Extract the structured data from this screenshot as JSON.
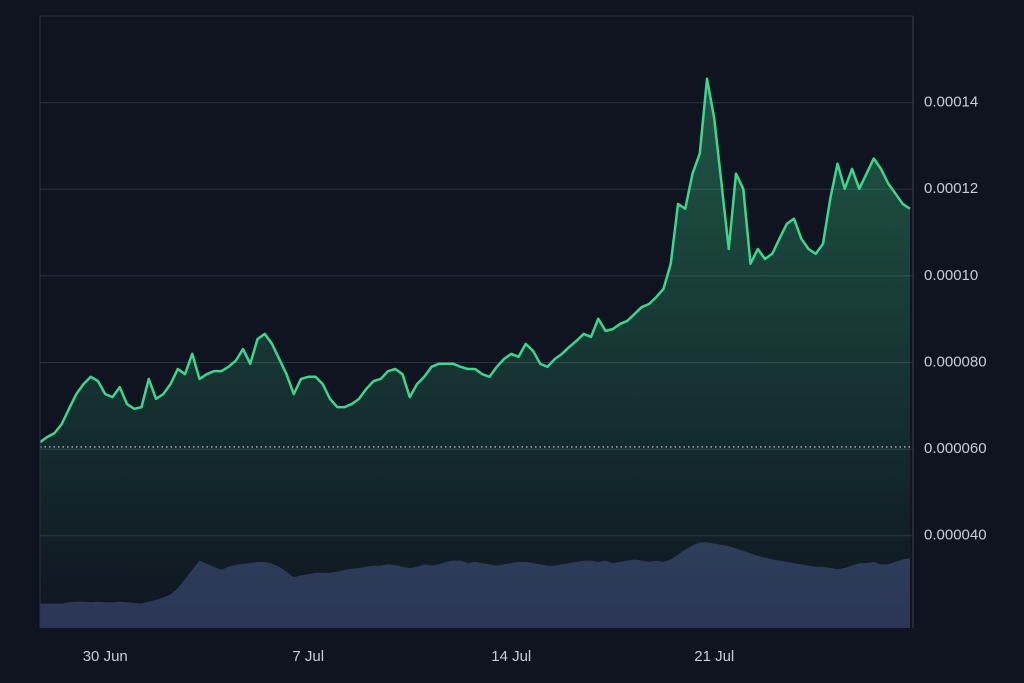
{
  "chart_data": {
    "type": "line",
    "background": "#0f1420",
    "grid": true,
    "grid_color": "#2b3242",
    "baseline": 6.05e-05,
    "ylim": [
      1.87e-05,
      0.00016
    ],
    "yticks": [
      {
        "value": 4e-05,
        "label": "0.000040"
      },
      {
        "value": 6e-05,
        "label": "0.000060"
      },
      {
        "value": 8e-05,
        "label": "0.000080"
      },
      {
        "value": 0.0001,
        "label": "0.00010"
      },
      0.00012,
      0.00014
    ],
    "y2lim": [
      0,
      100
    ],
    "categories": [
      null,
      null,
      null,
      null,
      null,
      null,
      null,
      null,
      null,
      "30 Jun",
      null,
      null,
      null,
      null,
      null,
      null,
      null,
      null,
      null,
      null,
      null,
      null,
      null,
      null,
      null,
      null,
      null,
      null,
      null,
      null,
      null,
      null,
      null,
      null,
      null,
      null,
      null,
      "7 Jul",
      null,
      null,
      null,
      null,
      null,
      null,
      null,
      null,
      null,
      null,
      null,
      null,
      null,
      null,
      null,
      null,
      null,
      null,
      null,
      null,
      null,
      null,
      null,
      null,
      null,
      null,
      null,
      "14 Jul",
      null,
      null,
      null,
      null,
      null,
      null,
      null,
      null,
      null,
      null,
      null,
      null,
      null,
      null,
      null,
      null,
      null,
      null,
      null,
      null,
      null,
      null,
      null,
      null,
      null,
      null,
      null,
      "21 Jul",
      null,
      null,
      null,
      null,
      null,
      null,
      null,
      null,
      null,
      null,
      null,
      null,
      null,
      null,
      null,
      null,
      null,
      null,
      null,
      null,
      null,
      null,
      null,
      null,
      null,
      null,
      null
    ],
    "series": [
      {
        "color": "#3dd68c",
        "values": [
          6.16e-05,
          6.28e-05,
          6.37e-05,
          6.58e-05,
          6.93e-05,
          7.27e-05,
          7.5e-05,
          7.67e-05,
          7.57e-05,
          7.27e-05,
          7.2e-05,
          7.43e-05,
          7.04e-05,
          6.93e-05,
          6.97e-05,
          7.62e-05,
          7.16e-05,
          7.27e-05,
          7.5e-05,
          7.85e-05,
          7.73e-05,
          8.2e-05,
          7.62e-05,
          7.73e-05,
          7.8e-05,
          7.8e-05,
          7.9e-05,
          8.04e-05,
          8.31e-05,
          7.97e-05,
          8.54e-05,
          8.66e-05,
          8.43e-05,
          8.08e-05,
          7.73e-05,
          7.27e-05,
          7.62e-05,
          7.67e-05,
          7.67e-05,
          7.5e-05,
          7.16e-05,
          6.97e-05,
          6.97e-05,
          7.04e-05,
          7.16e-05,
          7.39e-05,
          7.57e-05,
          7.62e-05,
          7.8e-05,
          7.85e-05,
          7.73e-05,
          7.2e-05,
          7.5e-05,
          7.67e-05,
          7.9e-05,
          7.97e-05,
          7.97e-05,
          7.97e-05,
          7.9e-05,
          7.85e-05,
          7.85e-05,
          7.73e-05,
          7.67e-05,
          7.9e-05,
          8.08e-05,
          8.2e-05,
          8.13e-05,
          8.43e-05,
          8.27e-05,
          7.97e-05,
          7.9e-05,
          8.08e-05,
          8.2e-05,
          8.36e-05,
          8.5e-05,
          8.66e-05,
          8.59e-05,
          9.01e-05,
          8.73e-05,
          8.77e-05,
          8.89e-05,
          8.96e-05,
          9.12e-05,
          9.28e-05,
          9.35e-05,
          9.51e-05,
          9.7e-05,
          0.0001028,
          0.0001166,
          0.0001155,
          0.0001236,
          0.0001282,
          0.0001455,
          0.0001363,
          0.0001213,
          0.0001062,
          0.0001236,
          0.0001201,
          0.0001028,
          0.0001062,
          0.0001039,
          0.0001051,
          0.0001086,
          0.000112,
          0.0001132,
          0.0001086,
          0.0001062,
          0.0001051,
          0.0001074,
          0.0001178,
          0.0001259,
          0.0001201,
          0.0001247,
          0.0001201,
          0.0001236,
          0.0001271,
          0.0001247,
          0.0001213,
          0.000119,
          0.0001166,
          0.0001155
        ]
      },
      {
        "color": "#2c3557",
        "axis": "y2",
        "values": [
          4,
          4,
          4,
          4,
          4.2,
          4.3,
          4.3,
          4.2,
          4.3,
          4.2,
          4.2,
          4.3,
          4.2,
          4.1,
          4,
          4.3,
          4.6,
          5,
          5.5,
          6.5,
          8,
          9.5,
          11,
          10.5,
          10,
          9.5,
          10,
          10.3,
          10.5,
          10.6,
          10.8,
          10.8,
          10.5,
          10,
          9.2,
          8.3,
          8.6,
          8.8,
          9,
          9,
          9,
          9.2,
          9.5,
          9.7,
          9.8,
          10,
          10.2,
          10.2,
          10.4,
          10.3,
          10,
          9.8,
          10,
          10.4,
          10.2,
          10.4,
          10.8,
          11,
          11,
          10.6,
          10.8,
          10.6,
          10.4,
          10.2,
          10.4,
          10.6,
          10.8,
          10.8,
          10.6,
          10.4,
          10.2,
          10.2,
          10.4,
          10.6,
          10.8,
          11,
          11,
          10.8,
          11,
          10.6,
          10.8,
          11,
          11.2,
          11,
          10.8,
          11,
          10.8,
          11.2,
          12,
          12.8,
          13.5,
          14,
          14,
          13.8,
          13.6,
          13.4,
          13,
          12.6,
          12.2,
          11.8,
          11.5,
          11.2,
          11,
          10.8,
          10.6,
          10.4,
          10.2,
          10,
          10,
          9.8,
          9.6,
          9.8,
          10.2,
          10.6,
          10.6,
          10.8,
          10.4,
          10.4,
          10.8,
          11.2,
          11.4
        ]
      }
    ]
  }
}
